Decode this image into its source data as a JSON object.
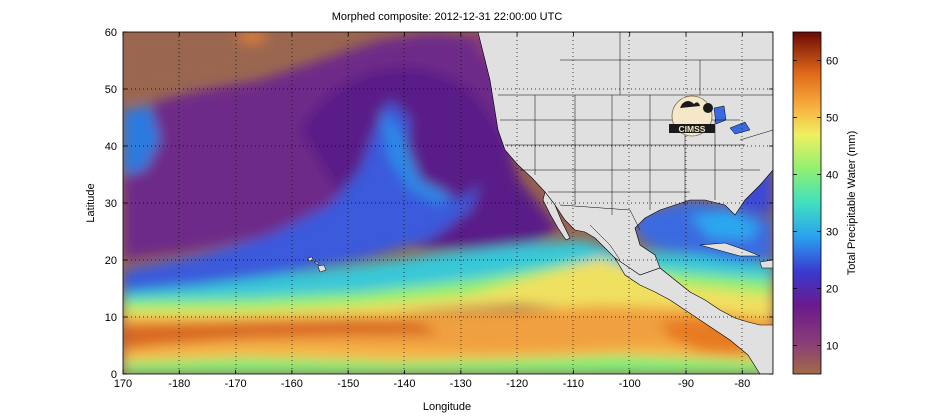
{
  "title": "Morphed composite: 2012-12-31 22:00:00 UTC",
  "map": {
    "xlabel": "Longitude",
    "ylabel": "Latitude",
    "lon_range": [
      170,
      -75
    ],
    "lat_range": [
      0,
      60
    ],
    "lon_ticks": [
      "170",
      "-180",
      "-170",
      "-160",
      "-150",
      "-140",
      "-130",
      "-120",
      "-110",
      "-100",
      "-90",
      "-80"
    ],
    "lat_ticks": [
      "0",
      "10",
      "20",
      "30",
      "40",
      "50",
      "60"
    ],
    "grid": "dotted",
    "logo_text": "CIMSS"
  },
  "colorbar": {
    "label": "Total Precipitable Water (mm)",
    "ticks": [
      "10",
      "20",
      "30",
      "40",
      "50",
      "60"
    ],
    "range": [
      5,
      65
    ],
    "colors": [
      "#a26a48",
      "#8a3e78",
      "#6a1a8c",
      "#3a4ad6",
      "#2aa0f0",
      "#3ae0c8",
      "#7cf07a",
      "#e8f060",
      "#f8b040",
      "#e87020",
      "#c83a10",
      "#7a1008"
    ]
  }
}
